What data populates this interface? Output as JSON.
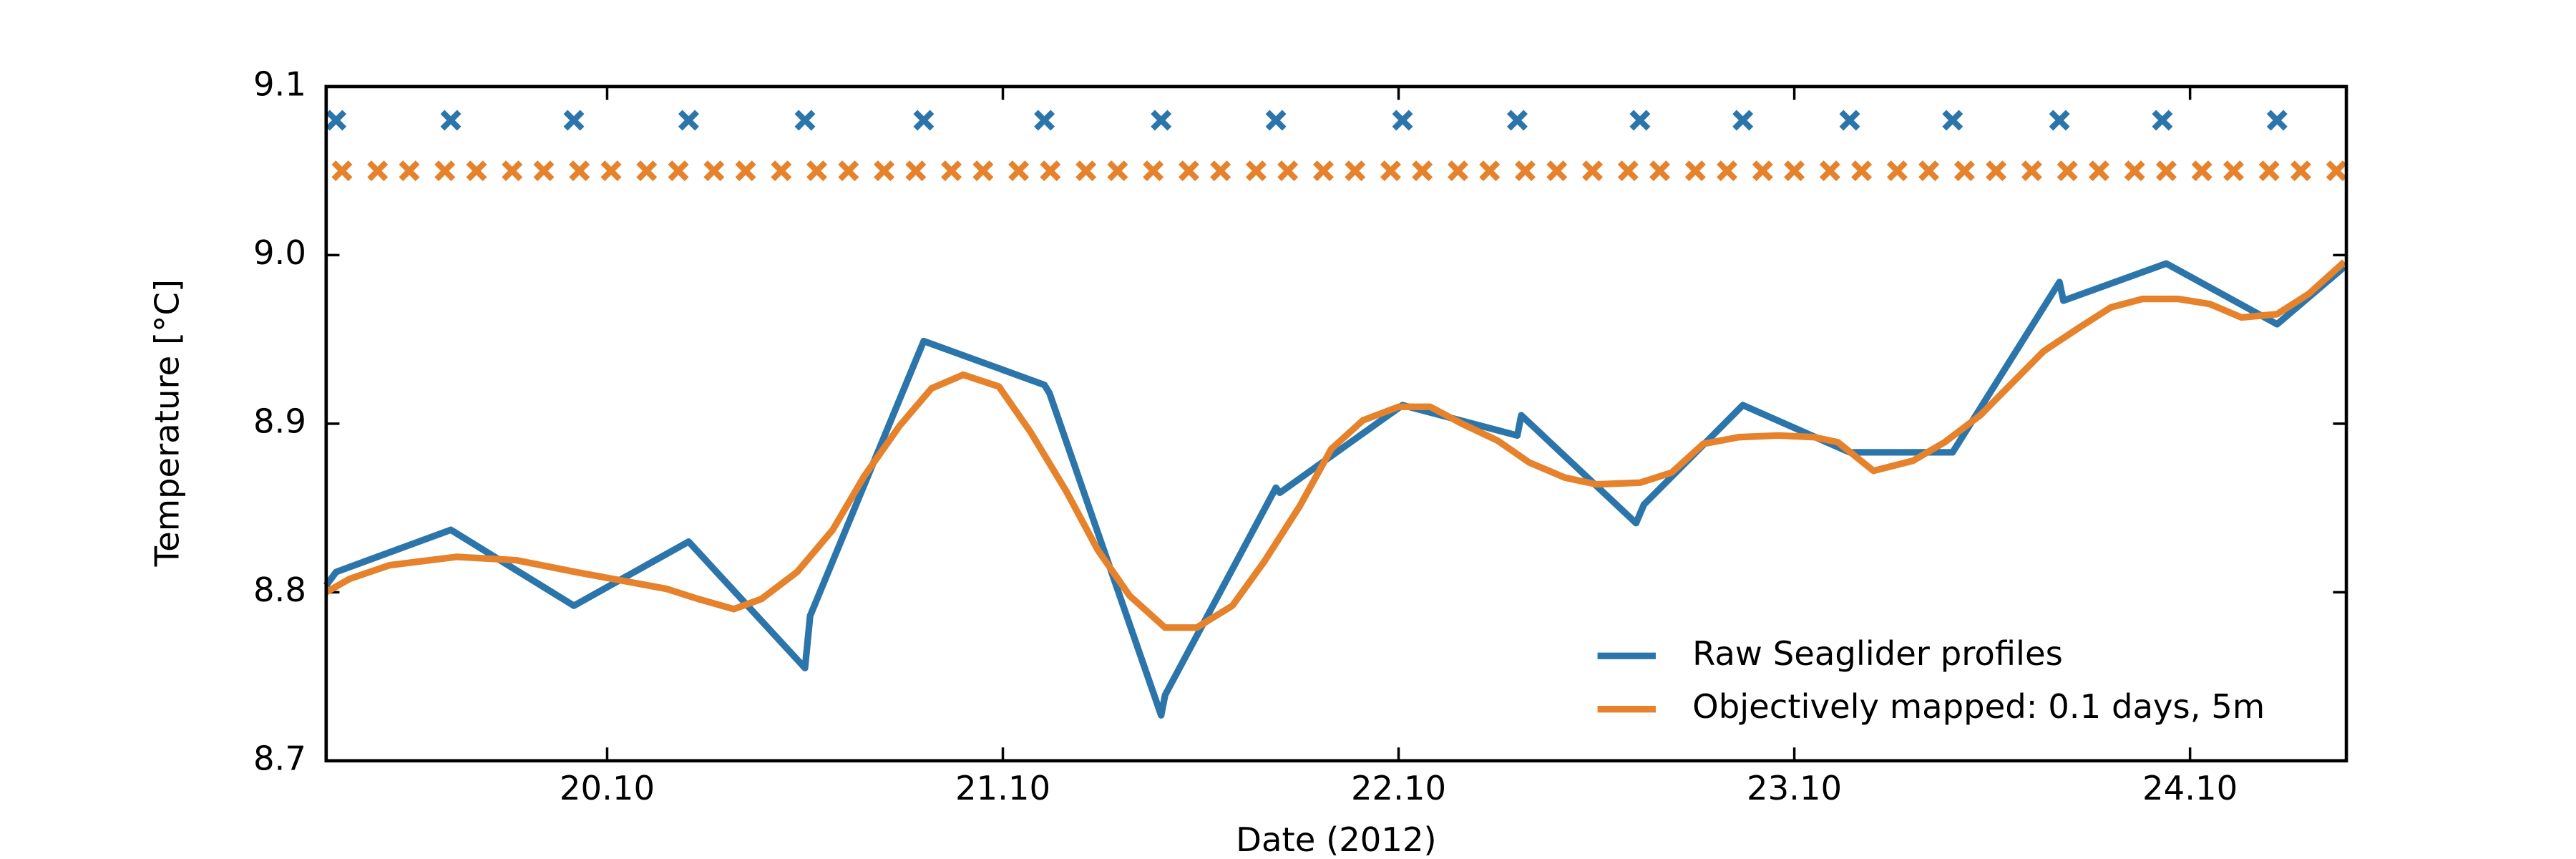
{
  "chart_data": {
    "type": "line",
    "xlabel": "Date (2012)",
    "ylabel": "Temperature [°C]",
    "xlim": [
      19.29,
      24.395
    ],
    "ylim": [
      8.7,
      9.1
    ],
    "xticks": [
      {
        "value": 20,
        "label": "20.10"
      },
      {
        "value": 21,
        "label": "21.10"
      },
      {
        "value": 22,
        "label": "22.10"
      },
      {
        "value": 23,
        "label": "23.10"
      },
      {
        "value": 24,
        "label": "24.10"
      }
    ],
    "yticks": [
      8.7,
      8.8,
      8.9,
      {
        "value": 9.0,
        "label": "9.0"
      },
      9.1
    ],
    "grid": false,
    "legend": "lower right",
    "series": [
      {
        "name": "Raw Seaglider profiles",
        "color": "#2c75ab",
        "x": [
          19.29,
          19.315,
          19.605,
          19.916,
          20.206,
          20.5,
          20.513,
          20.8,
          21.105,
          21.118,
          21.4,
          21.41,
          21.69,
          21.7,
          22.01,
          22.3,
          22.31,
          22.6,
          22.62,
          22.87,
          23.14,
          23.4,
          23.67,
          23.68,
          23.94,
          24.22,
          24.39
        ],
        "values": [
          8.804,
          8.812,
          8.837,
          8.792,
          8.83,
          8.755,
          8.786,
          8.949,
          8.923,
          8.918,
          8.727,
          8.739,
          8.862,
          8.859,
          8.911,
          8.893,
          8.905,
          8.841,
          8.852,
          8.911,
          8.883,
          8.883,
          8.984,
          8.973,
          8.995,
          8.959,
          8.993
        ]
      },
      {
        "name": "Objectively mapped: 0.1 days, 5m",
        "color": "#e5822b",
        "x": [
          19.29,
          19.35,
          19.45,
          19.62,
          19.77,
          19.92,
          20.15,
          20.23,
          20.32,
          20.39,
          20.48,
          20.57,
          20.65,
          20.74,
          20.82,
          20.9,
          20.99,
          21.07,
          21.16,
          21.24,
          21.32,
          21.41,
          21.49,
          21.58,
          21.66,
          21.75,
          21.83,
          21.91,
          22.0,
          22.08,
          22.16,
          22.25,
          22.33,
          22.42,
          22.5,
          22.61,
          22.69,
          22.77,
          22.86,
          22.96,
          23.05,
          23.11,
          23.2,
          23.3,
          23.38,
          23.47,
          23.55,
          23.63,
          23.72,
          23.8,
          23.88,
          23.97,
          24.05,
          24.13,
          24.22,
          24.3,
          24.39
        ],
        "values": [
          8.8,
          8.808,
          8.816,
          8.821,
          8.819,
          8.812,
          8.802,
          8.796,
          8.79,
          8.796,
          8.812,
          8.837,
          8.869,
          8.899,
          8.921,
          8.929,
          8.922,
          8.895,
          8.86,
          8.825,
          8.798,
          8.779,
          8.779,
          8.792,
          8.818,
          8.851,
          8.885,
          8.902,
          8.91,
          8.91,
          8.9,
          8.89,
          8.877,
          8.868,
          8.864,
          8.865,
          8.871,
          8.888,
          8.892,
          8.893,
          8.892,
          8.889,
          8.872,
          8.878,
          8.889,
          8.905,
          8.924,
          8.943,
          8.957,
          8.969,
          8.974,
          8.974,
          8.971,
          8.963,
          8.965,
          8.977,
          8.996
        ]
      }
    ],
    "markers": [
      {
        "color": "#2c75ab",
        "y": 9.08,
        "x": [
          19.315,
          19.605,
          19.916,
          20.206,
          20.5,
          20.8,
          21.105,
          21.4,
          21.69,
          22.01,
          22.3,
          22.61,
          22.87,
          23.14,
          23.4,
          23.67,
          23.93,
          24.22
        ]
      },
      {
        "color": "#e5822b",
        "y": 9.05,
        "x": [
          19.33,
          19.42,
          19.5,
          19.59,
          19.67,
          19.76,
          19.84,
          19.93,
          20.01,
          20.1,
          20.18,
          20.27,
          20.35,
          20.44,
          20.53,
          20.61,
          20.7,
          20.78,
          20.87,
          20.95,
          21.04,
          21.12,
          21.21,
          21.29,
          21.38,
          21.47,
          21.55,
          21.64,
          21.72,
          21.81,
          21.89,
          21.98,
          22.06,
          22.15,
          22.23,
          22.32,
          22.4,
          22.49,
          22.58,
          22.66,
          22.75,
          22.83,
          22.92,
          23.0,
          23.09,
          23.17,
          23.26,
          23.34,
          23.43,
          23.51,
          23.6,
          23.69,
          23.77,
          23.86,
          23.94,
          24.03,
          24.11,
          24.2,
          24.28,
          24.37
        ]
      }
    ]
  }
}
